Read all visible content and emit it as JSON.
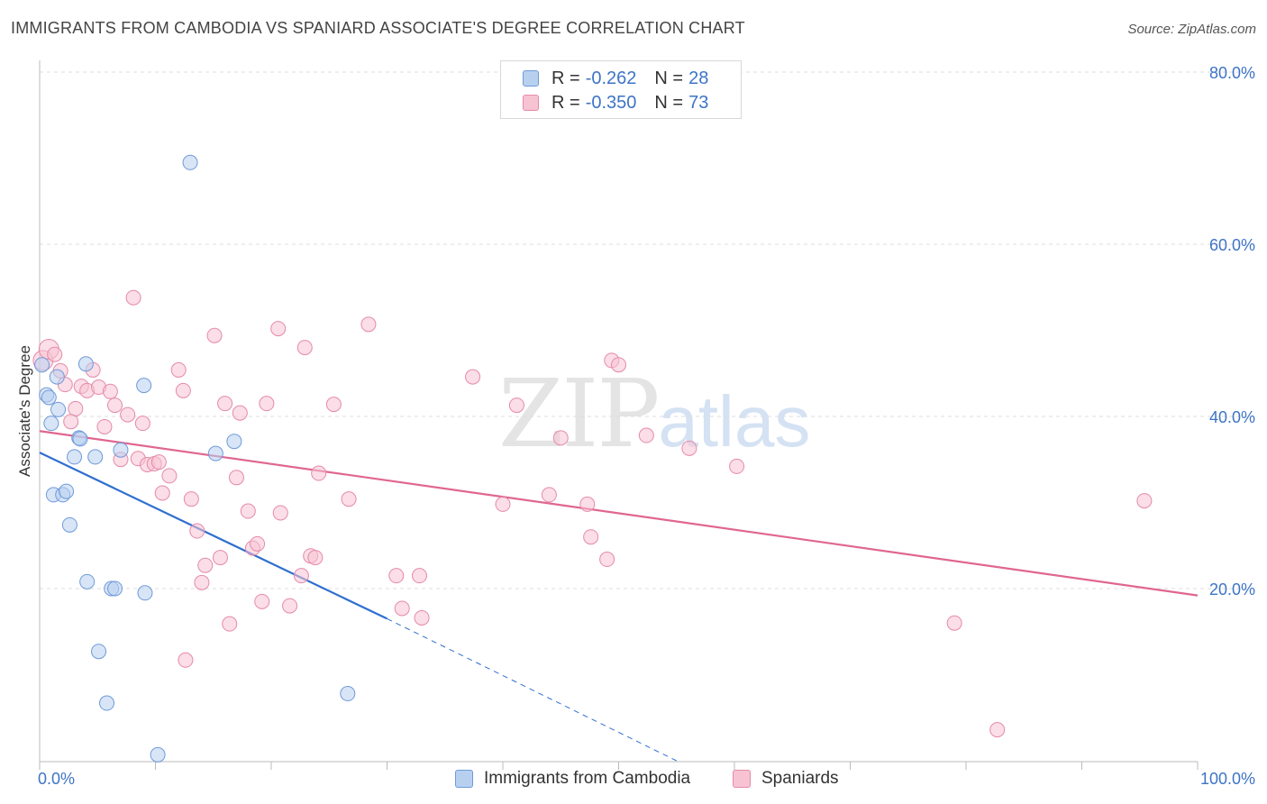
{
  "header": {
    "title": "IMMIGRANTS FROM CAMBODIA VS SPANIARD ASSOCIATE'S DEGREE CORRELATION CHART",
    "source": "Source: ZipAtlas.com"
  },
  "watermark": {
    "zip": "ZIP",
    "atlas": "atlas"
  },
  "legend": {
    "rows": [
      {
        "r_label": "R =",
        "r_value": "-0.262",
        "n_label": "N =",
        "n_value": "28"
      },
      {
        "r_label": "R =",
        "r_value": "-0.350",
        "n_label": "N =",
        "n_value": "73"
      }
    ]
  },
  "colors": {
    "blue_fill": "#b8d0f0",
    "blue_stroke": "#6f9ad8",
    "blue_line": "#2f6fd0",
    "pink_fill": "#f7c3d3",
    "pink_stroke": "#e58aa8",
    "pink_line": "#e06690",
    "grid": "#dddddd",
    "tick_label": "#3d74c6"
  },
  "chart_data": {
    "type": "scatter",
    "title": "IMMIGRANTS FROM CAMBODIA VS SPANIARD ASSOCIATE'S DEGREE CORRELATION CHART",
    "xlabel": "",
    "ylabel": "Associate's Degree",
    "xlim": [
      0,
      100
    ],
    "ylim": [
      0,
      82
    ],
    "x_tick_labels": [
      {
        "value": 0,
        "label": "0.0%"
      },
      {
        "value": 100,
        "label": "100.0%"
      }
    ],
    "y_tick_labels": [
      {
        "value": 20,
        "label": "20.0%"
      },
      {
        "value": 40,
        "label": "40.0%"
      },
      {
        "value": 60,
        "label": "60.0%"
      },
      {
        "value": 80,
        "label": "80.0%"
      }
    ],
    "series": [
      {
        "name": "Immigrants from Cambodia",
        "color": "blue",
        "points": [
          [
            0.2,
            46.0
          ],
          [
            0.6,
            42.5
          ],
          [
            0.8,
            42.2
          ],
          [
            1.0,
            39.2
          ],
          [
            1.2,
            30.9
          ],
          [
            1.5,
            44.6
          ],
          [
            1.6,
            40.8
          ],
          [
            2.0,
            30.9
          ],
          [
            2.3,
            31.3
          ],
          [
            2.6,
            27.4
          ],
          [
            3.0,
            35.3
          ],
          [
            3.4,
            37.5
          ],
          [
            3.5,
            37.4
          ],
          [
            4.0,
            46.1
          ],
          [
            4.1,
            20.8
          ],
          [
            4.8,
            35.3
          ],
          [
            5.1,
            12.7
          ],
          [
            5.8,
            6.7
          ],
          [
            6.2,
            20.0
          ],
          [
            6.5,
            20.0
          ],
          [
            7.0,
            36.1
          ],
          [
            9.0,
            43.6
          ],
          [
            9.1,
            19.5
          ],
          [
            10.2,
            0.7
          ],
          [
            13.0,
            69.5
          ],
          [
            15.2,
            35.7
          ],
          [
            16.8,
            37.1
          ],
          [
            26.6,
            7.8
          ]
        ],
        "trend": {
          "x_start": 0,
          "y_start": 35.8,
          "x_end": 30,
          "y_end": 16.5,
          "x_dash_end": 55,
          "y_dash_end": 0
        }
      },
      {
        "name": "Spaniards",
        "color": "pink",
        "points": [
          [
            0.3,
            46.5
          ],
          [
            0.8,
            47.8
          ],
          [
            1.3,
            47.2
          ],
          [
            1.8,
            45.3
          ],
          [
            2.2,
            43.7
          ],
          [
            2.7,
            39.4
          ],
          [
            3.1,
            40.9
          ],
          [
            3.6,
            43.5
          ],
          [
            4.1,
            43.0
          ],
          [
            4.6,
            45.4
          ],
          [
            5.1,
            43.4
          ],
          [
            5.6,
            38.8
          ],
          [
            6.1,
            42.9
          ],
          [
            6.5,
            41.3
          ],
          [
            7.0,
            35.0
          ],
          [
            7.6,
            40.2
          ],
          [
            8.1,
            53.8
          ],
          [
            8.5,
            35.1
          ],
          [
            8.9,
            39.2
          ],
          [
            9.3,
            34.4
          ],
          [
            9.9,
            34.5
          ],
          [
            10.3,
            34.7
          ],
          [
            10.6,
            31.1
          ],
          [
            11.2,
            33.1
          ],
          [
            12.0,
            45.4
          ],
          [
            12.4,
            43.0
          ],
          [
            12.6,
            11.7
          ],
          [
            13.1,
            30.4
          ],
          [
            13.6,
            26.7
          ],
          [
            14.0,
            20.7
          ],
          [
            14.3,
            22.7
          ],
          [
            15.1,
            49.4
          ],
          [
            15.6,
            23.6
          ],
          [
            16.0,
            41.5
          ],
          [
            16.4,
            15.9
          ],
          [
            17.0,
            32.9
          ],
          [
            17.3,
            40.4
          ],
          [
            18.0,
            29.0
          ],
          [
            18.4,
            24.7
          ],
          [
            18.8,
            25.2
          ],
          [
            19.2,
            18.5
          ],
          [
            19.6,
            41.5
          ],
          [
            20.6,
            50.2
          ],
          [
            20.8,
            28.8
          ],
          [
            21.6,
            18.0
          ],
          [
            22.6,
            21.5
          ],
          [
            22.9,
            48.0
          ],
          [
            23.4,
            23.8
          ],
          [
            23.8,
            23.6
          ],
          [
            24.1,
            33.4
          ],
          [
            25.4,
            41.4
          ],
          [
            26.7,
            30.4
          ],
          [
            28.4,
            50.7
          ],
          [
            30.8,
            21.5
          ],
          [
            31.3,
            17.7
          ],
          [
            32.8,
            21.5
          ],
          [
            33.0,
            16.6
          ],
          [
            37.4,
            44.6
          ],
          [
            40.0,
            29.8
          ],
          [
            41.2,
            41.3
          ],
          [
            44.0,
            30.9
          ],
          [
            45.0,
            37.5
          ],
          [
            47.3,
            29.8
          ],
          [
            47.6,
            26.0
          ],
          [
            49.0,
            23.4
          ],
          [
            49.4,
            46.5
          ],
          [
            50.0,
            46.0
          ],
          [
            52.4,
            37.8
          ],
          [
            56.1,
            36.3
          ],
          [
            60.2,
            34.2
          ],
          [
            79.0,
            16.0
          ],
          [
            82.7,
            3.6
          ],
          [
            95.4,
            30.2
          ]
        ],
        "trend": {
          "x_start": 0,
          "y_start": 38.3,
          "x_end": 100,
          "y_end": 19.2
        }
      }
    ],
    "legend_entries": [
      "Immigrants from Cambodia",
      "Spaniards"
    ],
    "grid": true,
    "legend_position": "top-center"
  }
}
